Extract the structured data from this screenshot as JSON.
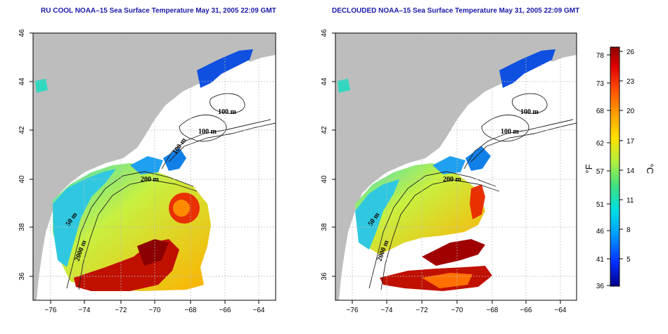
{
  "panels": [
    {
      "title": "RU COOL NOAA–15 Sea Surface Temperature May 31, 2005 22:09 GMT",
      "contour_labels": [
        "100 m",
        "100 m",
        "100 m",
        "200 m",
        "50 m",
        "2000 m"
      ]
    },
    {
      "title": "DECLOUDED NOAA–15 Sea Surface Temperature May 31, 2005 22:09 GMT",
      "contour_labels": [
        "100 m",
        "100 m",
        "200 m",
        "50 m",
        "2000 m"
      ]
    }
  ],
  "axes": {
    "x_ticks": [
      "−76",
      "−74",
      "−72",
      "−70",
      "−68",
      "−66",
      "−64"
    ],
    "y_ticks": [
      "46",
      "44",
      "42",
      "40",
      "38",
      "36"
    ],
    "grid": true
  },
  "colorbar": {
    "fahrenheit_ticks": [
      "78",
      "73",
      "68",
      "62",
      "57",
      "51",
      "46",
      "41",
      "36"
    ],
    "celsius_ticks": [
      "26",
      "23",
      "20",
      "17",
      "14",
      "11",
      "8",
      "5"
    ],
    "fahrenheit_label": "°F",
    "celsius_label": "°C",
    "colors": [
      "#00008b",
      "#0030ff",
      "#00a0ff",
      "#00e0e0",
      "#40e080",
      "#b0f040",
      "#ffe000",
      "#ffa000",
      "#ff5000",
      "#e00000",
      "#8b0000"
    ]
  },
  "colors": {
    "land": "#bdbdbd",
    "title": "#1a1aa8"
  }
}
